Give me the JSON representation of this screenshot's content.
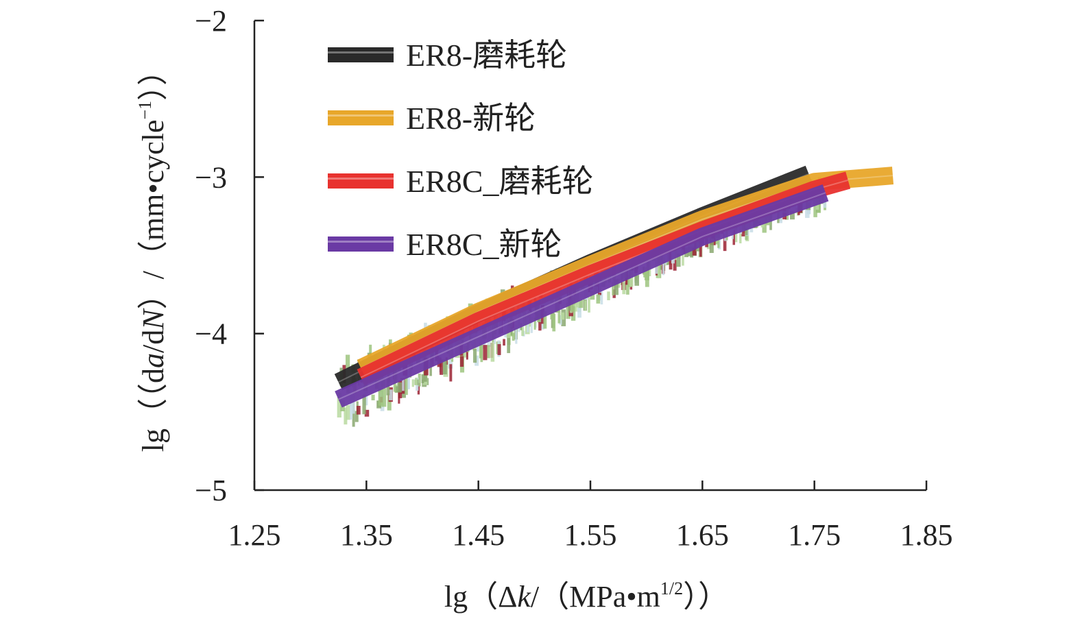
{
  "chart_data": {
    "type": "line",
    "xlabel": "lg(Δk/(MPa•m1/2))",
    "ylabel": "lg((da/dN)/(mm•cycle−1))",
    "xlabel_parts": {
      "prefix": "lg（Δ",
      "italic": "k",
      "middle": "/（MPa•m",
      "sup": "1/2",
      "suffix": "））"
    },
    "ylabel_parts": {
      "prefix": "lg（（d",
      "italic1": "a",
      "middle1": "/d",
      "italic2": "N",
      "middle2": "）/（mm•cycle",
      "sup": "−1",
      "suffix": "））"
    },
    "xlim": [
      1.25,
      1.85
    ],
    "ylim": [
      -5,
      -2
    ],
    "xticks": [
      1.25,
      1.35,
      1.45,
      1.55,
      1.65,
      1.75,
      1.85
    ],
    "xtick_labels": [
      "1.25",
      "1.35",
      "1.45",
      "1.55",
      "1.65",
      "1.75",
      "1.85"
    ],
    "yticks": [
      -5,
      -4,
      -3,
      -2
    ],
    "ytick_labels": [
      "−5",
      "−4",
      "−3",
      "−2"
    ],
    "legend_position": "top-left",
    "series": [
      {
        "name": "ER8-磨耗轮",
        "color": "#2a2a2a",
        "x": [
          1.325,
          1.45,
          1.55,
          1.65,
          1.745
        ],
        "y": [
          -4.31,
          -3.87,
          -3.55,
          -3.25,
          -2.98
        ]
      },
      {
        "name": "ER8-新轮",
        "color": "#e8a72a",
        "x": [
          1.345,
          1.45,
          1.55,
          1.65,
          1.75,
          1.82
        ],
        "y": [
          -4.22,
          -3.86,
          -3.56,
          -3.27,
          -3.03,
          -2.99
        ]
      },
      {
        "name": "ER8C_磨耗轮",
        "color": "#e8322f",
        "x": [
          1.345,
          1.45,
          1.55,
          1.65,
          1.75,
          1.78
        ],
        "y": [
          -4.28,
          -3.92,
          -3.62,
          -3.34,
          -3.08,
          -3.02
        ]
      },
      {
        "name": "ER8C_新轮",
        "color": "#6a3aa4",
        "x": [
          1.325,
          1.45,
          1.55,
          1.65,
          1.76
        ],
        "y": [
          -4.42,
          -4.02,
          -3.7,
          -3.38,
          -3.1
        ]
      }
    ]
  }
}
